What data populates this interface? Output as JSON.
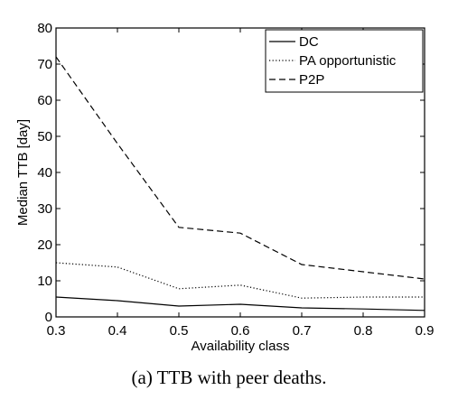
{
  "caption": "(a) TTB with peer deaths.",
  "chart_data": {
    "type": "line",
    "title": "",
    "xlabel": "Availability class",
    "ylabel": "Median TTB [day]",
    "xlim": [
      0.3,
      0.9
    ],
    "ylim": [
      0,
      80
    ],
    "xticks": [
      "0.3",
      "0.4",
      "0.5",
      "0.6",
      "0.7",
      "0.8",
      "0.9"
    ],
    "yticks": [
      "0",
      "10",
      "20",
      "30",
      "40",
      "50",
      "60",
      "70",
      "80"
    ],
    "x": [
      0.3,
      0.4,
      0.5,
      0.6,
      0.7,
      0.8,
      0.9
    ],
    "grid": false,
    "legend_position": "top-right",
    "series": [
      {
        "name": "DC",
        "style": "solid",
        "color": "#000000",
        "values": [
          5.5,
          4.5,
          3.0,
          3.5,
          2.5,
          2.2,
          1.8
        ]
      },
      {
        "name": "PA opportunistic",
        "style": "dotted",
        "color": "#000000",
        "values": [
          15.0,
          13.8,
          7.8,
          8.8,
          5.2,
          5.5,
          5.5
        ]
      },
      {
        "name": "P2P",
        "style": "dashed",
        "color": "#000000",
        "values": [
          72.0,
          48.0,
          24.8,
          23.2,
          14.5,
          12.5,
          10.5
        ]
      }
    ]
  }
}
